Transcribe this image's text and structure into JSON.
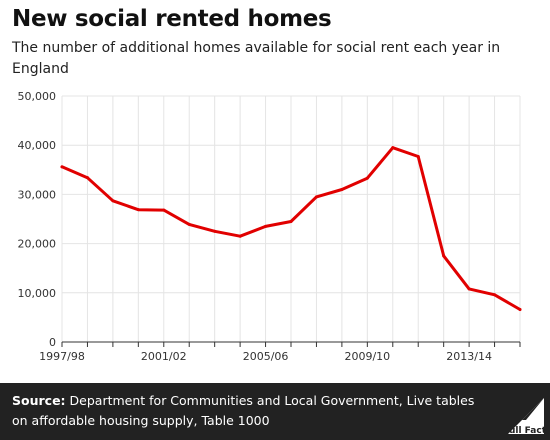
{
  "title": "New social rented homes",
  "subtitle": "The number of additional homes available for social rent each year in England",
  "source": {
    "label": "Source:",
    "text": "Department for Communities and Local Government, Live tables on affordable housing supply, Table 1000"
  },
  "logo_text": "Full Fact",
  "colors": {
    "line": "#e10000",
    "grid": "#e4e4e4",
    "footer": "#222222"
  },
  "chart_data": {
    "type": "line",
    "xlabel": "",
    "ylabel": "",
    "ylim": [
      0,
      50000
    ],
    "grid": true,
    "y_ticks": [
      0,
      10000,
      20000,
      30000,
      40000,
      50000
    ],
    "y_tick_labels": [
      "0",
      "10,000",
      "20,000",
      "30,000",
      "40,000",
      "50,000"
    ],
    "x_tick_labels": [
      "1997/98",
      "2001/02",
      "2005/06",
      "2009/10",
      "2013/14"
    ],
    "x_tick_indices": [
      0,
      4,
      8,
      12,
      16
    ],
    "x": [
      "1997/98",
      "1998/99",
      "1999/00",
      "2000/01",
      "2001/02",
      "2002/03",
      "2003/04",
      "2004/05",
      "2005/06",
      "2006/07",
      "2007/08",
      "2008/09",
      "2009/10",
      "2010/11",
      "2011/12",
      "2012/13",
      "2013/14",
      "2014/15",
      "2015/16"
    ],
    "series": [
      {
        "values": [
          35600,
          33400,
          28700,
          26900,
          26800,
          23900,
          22500,
          21500,
          23500,
          24500,
          29500,
          31000,
          33300,
          39500,
          37700,
          17500,
          10800,
          9600,
          6600
        ]
      }
    ]
  }
}
